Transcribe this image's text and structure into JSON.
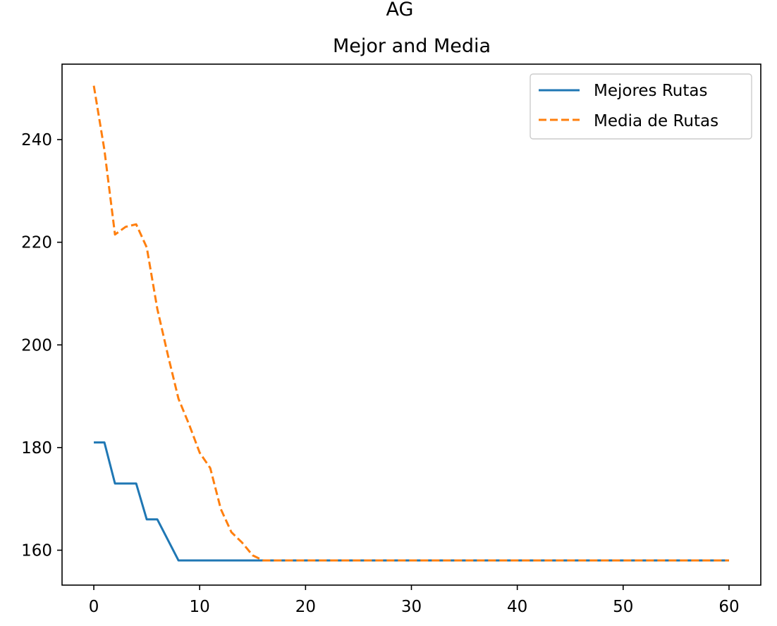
{
  "chart_data": {
    "type": "line",
    "suptitle": "AG",
    "title": "Mejor and Media",
    "xlabel": "",
    "ylabel": "",
    "xlim": [
      -3,
      63
    ],
    "ylim": [
      153.2,
      254.7
    ],
    "xticks": [
      0,
      10,
      20,
      30,
      40,
      50,
      60
    ],
    "yticks": [
      160,
      180,
      200,
      220,
      240
    ],
    "grid": false,
    "legend_position": "upper right",
    "x": [
      0,
      1,
      2,
      3,
      4,
      5,
      6,
      7,
      8,
      9,
      10,
      11,
      12,
      13,
      14,
      15,
      16,
      17,
      18,
      19,
      20,
      21,
      22,
      23,
      24,
      25,
      26,
      27,
      28,
      29,
      30,
      31,
      32,
      33,
      34,
      35,
      36,
      37,
      38,
      39,
      40,
      41,
      42,
      43,
      44,
      45,
      46,
      47,
      48,
      49,
      50,
      51,
      52,
      53,
      54,
      55,
      56,
      57,
      58,
      59,
      60
    ],
    "series": [
      {
        "name": "Mejores Rutas",
        "color": "#1f77b4",
        "style": "solid",
        "values": [
          181,
          181,
          173,
          173,
          173,
          166,
          166,
          162,
          158,
          158,
          158,
          158,
          158,
          158,
          158,
          158,
          158,
          158,
          158,
          158,
          158,
          158,
          158,
          158,
          158,
          158,
          158,
          158,
          158,
          158,
          158,
          158,
          158,
          158,
          158,
          158,
          158,
          158,
          158,
          158,
          158,
          158,
          158,
          158,
          158,
          158,
          158,
          158,
          158,
          158,
          158,
          158,
          158,
          158,
          158,
          158,
          158,
          158,
          158,
          158,
          158
        ]
      },
      {
        "name": "Media de Rutas",
        "color": "#ff7f0e",
        "style": "dashed",
        "values": [
          250.5,
          238,
          221.5,
          223,
          223.5,
          219,
          207,
          198,
          189.5,
          184.5,
          179,
          176,
          168,
          163.5,
          161.5,
          159,
          158,
          158,
          158,
          158,
          158,
          158,
          158,
          158,
          158,
          158,
          158,
          158,
          158,
          158,
          158,
          158,
          158,
          158,
          158,
          158,
          158,
          158,
          158,
          158,
          158,
          158,
          158,
          158,
          158,
          158,
          158,
          158,
          158,
          158,
          158,
          158,
          158,
          158,
          158,
          158,
          158,
          158,
          158,
          158,
          158
        ]
      }
    ]
  }
}
